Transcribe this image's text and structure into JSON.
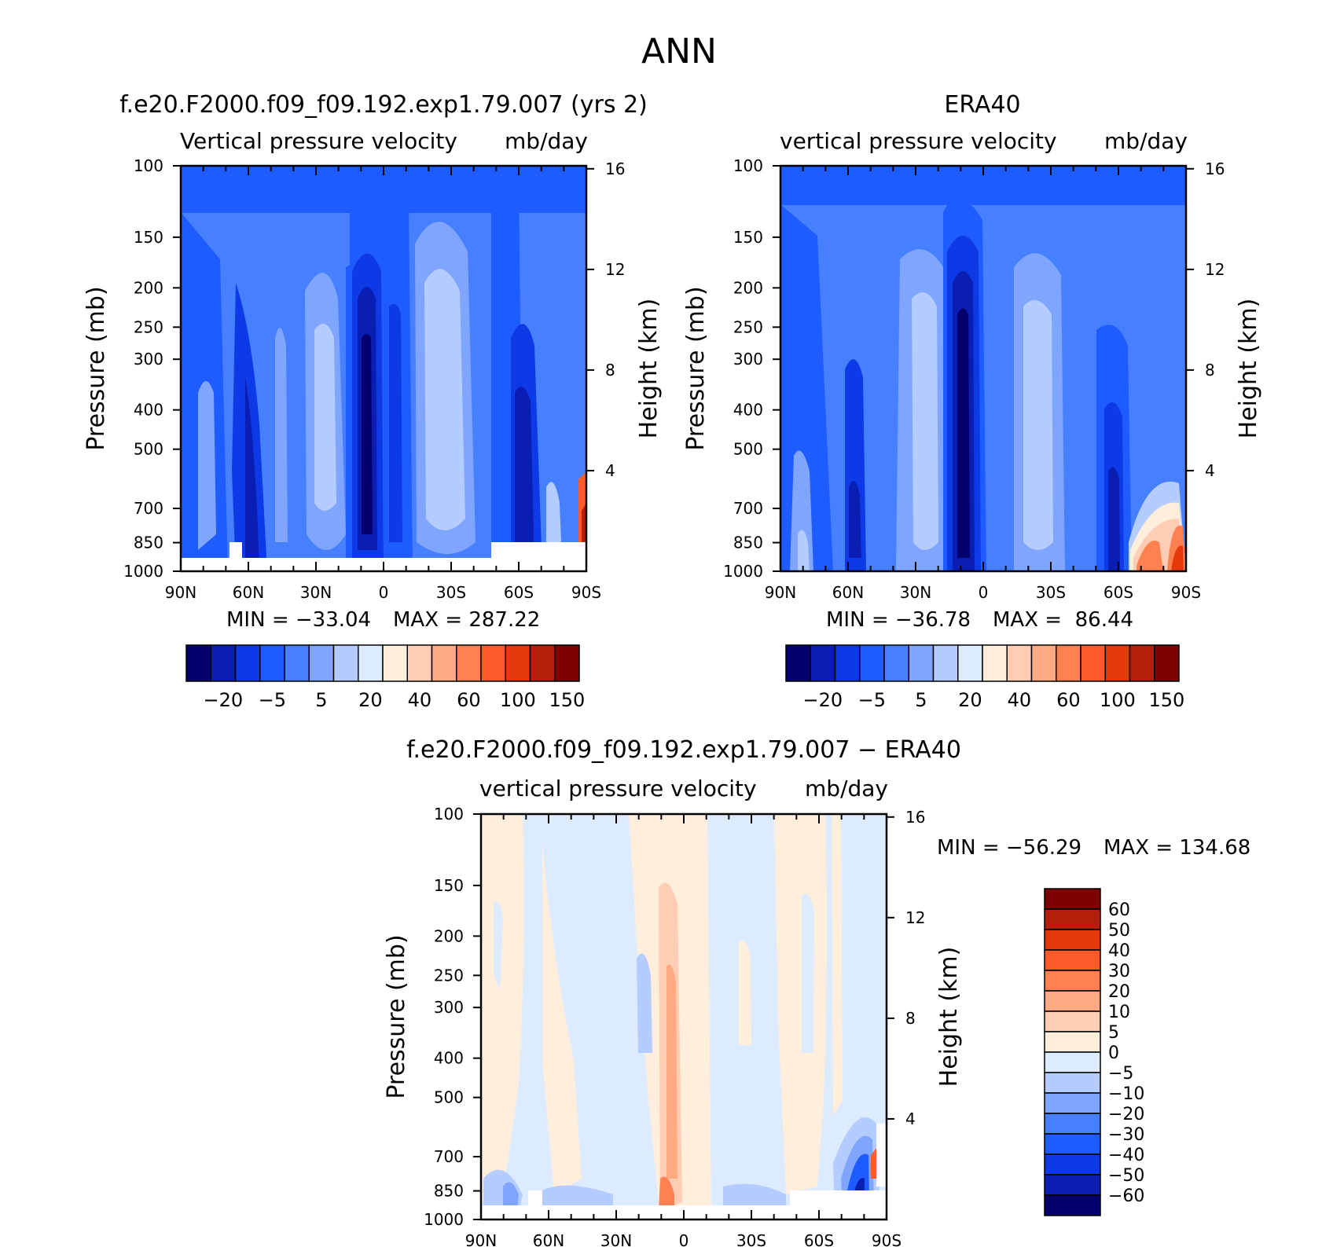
{
  "page_title": "ANN",
  "chart_data": [
    {
      "id": "model",
      "type": "heatmap",
      "panel_title": "f.e20.F2000.f09_f09.192.exp1.79.007 (yrs 2)",
      "variable": "Vertical pressure velocity",
      "units": "mb/day",
      "ylabel": "Pressure (mb)",
      "ylabel2": "Height (km)",
      "x_ticks": [
        "90N",
        "60N",
        "30N",
        "0",
        "30S",
        "60S",
        "90S"
      ],
      "y_ticks": [
        "100",
        "150",
        "200",
        "250",
        "300",
        "400",
        "500",
        "700",
        "850",
        "1000"
      ],
      "y2_ticks": [
        "16",
        "12",
        "8",
        "4"
      ],
      "min_label": "MIN = −33.04",
      "max_label": "MAX = 287.22",
      "min": -33.04,
      "max": 287.22,
      "colorbar_labels": [
        "−20",
        "−5",
        "5",
        "20",
        "40",
        "60",
        "100",
        "150"
      ],
      "colorbar_colors": [
        "#03006e",
        "#0a1eb4",
        "#0d3ae6",
        "#1e5cff",
        "#4680ff",
        "#80a5ff",
        "#b4ccff",
        "#dcebff",
        "#ffeedc",
        "#ffcdb4",
        "#ffaa82",
        "#ff8050",
        "#ff5a28",
        "#e6380a",
        "#b41e0a",
        "#7d0303"
      ]
    },
    {
      "id": "obs",
      "type": "heatmap",
      "panel_title": "ERA40",
      "variable": "vertical pressure velocity",
      "units": "mb/day",
      "ylabel": "Pressure (mb)",
      "ylabel2": "Height (km)",
      "x_ticks": [
        "90N",
        "60N",
        "30N",
        "0",
        "30S",
        "60S",
        "90S"
      ],
      "y_ticks": [
        "100",
        "150",
        "200",
        "250",
        "300",
        "400",
        "500",
        "700",
        "850",
        "1000"
      ],
      "y2_ticks": [
        "16",
        "12",
        "8",
        "4"
      ],
      "min_label": "MIN = −36.78",
      "max_label": "MAX =  86.44",
      "min": -36.78,
      "max": 86.44,
      "colorbar_labels": [
        "−20",
        "−5",
        "5",
        "20",
        "40",
        "60",
        "100",
        "150"
      ],
      "colorbar_colors": [
        "#03006e",
        "#0a1eb4",
        "#0d3ae6",
        "#1e5cff",
        "#4680ff",
        "#80a5ff",
        "#b4ccff",
        "#dcebff",
        "#ffeedc",
        "#ffcdb4",
        "#ffaa82",
        "#ff8050",
        "#ff5a28",
        "#e6380a",
        "#b41e0a",
        "#7d0303"
      ]
    },
    {
      "id": "diff",
      "type": "heatmap",
      "panel_title": "f.e20.F2000.f09_f09.192.exp1.79.007 − ERA40",
      "variable": "vertical pressure velocity",
      "units": "mb/day",
      "ylabel": "Pressure (mb)",
      "ylabel2": "Height (km)",
      "x_ticks": [
        "90N",
        "60N",
        "30N",
        "0",
        "30S",
        "60S",
        "90S"
      ],
      "y_ticks": [
        "100",
        "150",
        "200",
        "250",
        "300",
        "400",
        "500",
        "700",
        "850",
        "1000"
      ],
      "y2_ticks": [
        "16",
        "12",
        "8",
        "4"
      ],
      "min_label": "MIN = −56.29",
      "max_label": "MAX = 134.68",
      "min": -56.29,
      "max": 134.68,
      "colorbar_labels": [
        "60",
        "50",
        "40",
        "30",
        "20",
        "10",
        "5",
        "0",
        "−5",
        "−10",
        "−20",
        "−30",
        "−40",
        "−50",
        "−60"
      ],
      "colorbar_colors": [
        "#7d0303",
        "#b41e0a",
        "#e6380a",
        "#ff5a28",
        "#ff8050",
        "#ffaa82",
        "#ffcdb4",
        "#ffeedc",
        "#dcebff",
        "#b4ccff",
        "#80a5ff",
        "#4680ff",
        "#1e5cff",
        "#0d3ae6",
        "#0a1eb4",
        "#03006e"
      ]
    }
  ]
}
